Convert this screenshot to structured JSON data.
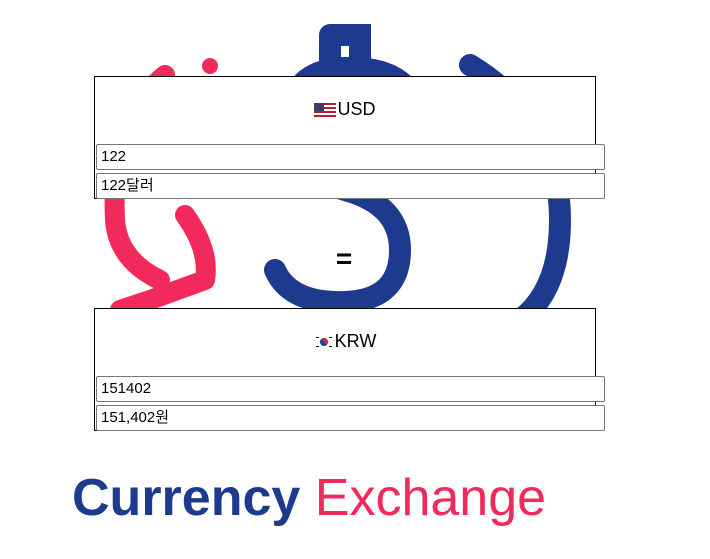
{
  "colors": {
    "primary": "#1d3a8f",
    "accent": "#f2295b"
  },
  "from": {
    "flag_icon": "us-flag-icon",
    "currency": "USD",
    "amount_value": "122",
    "amount_text_value": "122달러"
  },
  "equals": "=",
  "to": {
    "flag_icon": "kr-flag-icon",
    "currency": "KRW",
    "amount_value": "151402",
    "amount_text_value": "151,402원"
  },
  "brand": {
    "word1": "Currency",
    "word2": "Exchange"
  }
}
